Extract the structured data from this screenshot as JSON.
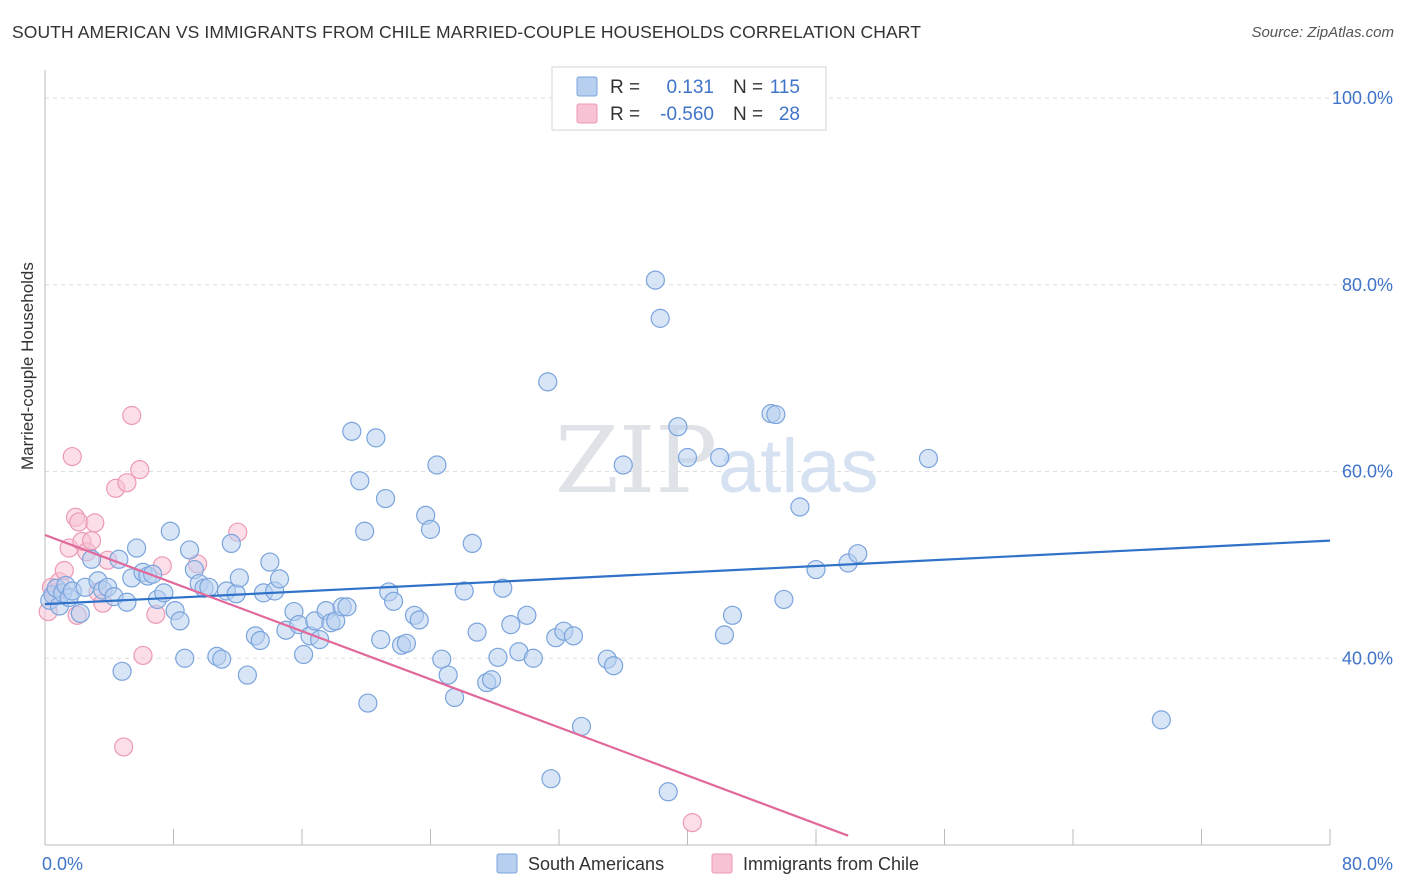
{
  "title": "SOUTH AMERICAN VS IMMIGRANTS FROM CHILE MARRIED-COUPLE HOUSEHOLDS CORRELATION CHART",
  "source": "Source: ZipAtlas.com",
  "watermark": {
    "zip": "ZIP",
    "atlas": "atlas"
  },
  "colors": {
    "blue_fill": "#b8d0f0",
    "blue_stroke": "#7aa4dc",
    "blue_line": "#2f72c8",
    "pink_fill": "#f7c3d4",
    "pink_stroke": "#ec9ab6",
    "pink_line": "#e0689a",
    "axis_text": "#3f74c8",
    "grid": "#dddddd"
  },
  "legend": {
    "rows": [
      {
        "r_label": "R =",
        "r_value": "0.131",
        "n_label": "N =",
        "n_value": "115",
        "color": "blue"
      },
      {
        "r_label": "R =",
        "r_value": "-0.560",
        "n_label": "N =",
        "n_value": "28",
        "color": "pink"
      }
    ]
  },
  "bottom_legend": [
    {
      "label": "South Americans",
      "color": "blue"
    },
    {
      "label": "Immigrants from Chile",
      "color": "pink"
    }
  ],
  "chart_data": {
    "type": "scatter",
    "xlabel": "",
    "ylabel": "Married-couple Households",
    "xlim": [
      0,
      80
    ],
    "ylim": [
      20,
      103
    ],
    "x_tick_labels": [
      {
        "value": 0,
        "label": "0.0%"
      },
      {
        "value": 80,
        "label": "80.0%"
      }
    ],
    "y_tick_labels": [
      {
        "value": 100,
        "label": "100.0%"
      },
      {
        "value": 80,
        "label": "80.0%"
      },
      {
        "value": 60,
        "label": "60.0%"
      },
      {
        "value": 40,
        "label": "40.0%"
      }
    ],
    "grid": true,
    "legend_position": "top-center",
    "series": [
      {
        "name": "South Americans",
        "color": "blue",
        "trend": {
          "x": [
            0,
            80
          ],
          "y": [
            45.8,
            52.6
          ]
        },
        "points": [
          [
            0.3,
            46.2
          ],
          [
            0.5,
            46.8
          ],
          [
            0.7,
            47.5
          ],
          [
            0.9,
            45.6
          ],
          [
            1.1,
            47.0
          ],
          [
            1.3,
            47.8
          ],
          [
            1.5,
            46.5
          ],
          [
            1.7,
            47.2
          ],
          [
            2.2,
            44.8
          ],
          [
            2.5,
            47.6
          ],
          [
            2.9,
            50.6
          ],
          [
            3.3,
            48.3
          ],
          [
            3.6,
            47.3
          ],
          [
            3.9,
            47.6
          ],
          [
            4.3,
            46.6
          ],
          [
            4.6,
            50.6
          ],
          [
            4.8,
            38.6
          ],
          [
            5.1,
            46.0
          ],
          [
            5.4,
            48.6
          ],
          [
            5.7,
            51.8
          ],
          [
            6.1,
            49.2
          ],
          [
            6.4,
            48.8
          ],
          [
            6.7,
            49.0
          ],
          [
            7.0,
            46.3
          ],
          [
            7.4,
            47.0
          ],
          [
            7.8,
            53.6
          ],
          [
            8.1,
            45.1
          ],
          [
            8.4,
            44.0
          ],
          [
            8.7,
            40.0
          ],
          [
            9.0,
            51.6
          ],
          [
            9.3,
            49.5
          ],
          [
            9.6,
            48.0
          ],
          [
            9.9,
            47.5
          ],
          [
            10.2,
            47.6
          ],
          [
            10.7,
            40.2
          ],
          [
            11.0,
            39.9
          ],
          [
            11.3,
            47.2
          ],
          [
            11.6,
            52.3
          ],
          [
            11.9,
            46.9
          ],
          [
            12.1,
            48.6
          ],
          [
            12.6,
            38.2
          ],
          [
            13.1,
            42.4
          ],
          [
            13.4,
            41.9
          ],
          [
            13.6,
            47.0
          ],
          [
            14.0,
            50.3
          ],
          [
            14.3,
            47.2
          ],
          [
            14.6,
            48.5
          ],
          [
            15.0,
            43.0
          ],
          [
            15.5,
            45.0
          ],
          [
            15.8,
            43.6
          ],
          [
            16.1,
            40.4
          ],
          [
            16.5,
            42.4
          ],
          [
            16.8,
            44.0
          ],
          [
            17.1,
            42.0
          ],
          [
            17.5,
            45.1
          ],
          [
            17.8,
            43.8
          ],
          [
            18.1,
            44.0
          ],
          [
            18.5,
            45.5
          ],
          [
            18.8,
            45.5
          ],
          [
            19.1,
            64.3
          ],
          [
            19.6,
            59.0
          ],
          [
            19.9,
            53.6
          ],
          [
            20.1,
            35.2
          ],
          [
            20.6,
            63.6
          ],
          [
            20.9,
            42.0
          ],
          [
            21.2,
            57.1
          ],
          [
            21.4,
            47.1
          ],
          [
            21.7,
            46.1
          ],
          [
            22.2,
            41.4
          ],
          [
            22.5,
            41.6
          ],
          [
            23.0,
            44.6
          ],
          [
            23.3,
            44.1
          ],
          [
            23.7,
            55.3
          ],
          [
            24.0,
            53.8
          ],
          [
            24.4,
            60.7
          ],
          [
            24.7,
            39.9
          ],
          [
            25.1,
            38.2
          ],
          [
            25.5,
            35.8
          ],
          [
            26.1,
            47.2
          ],
          [
            26.6,
            52.3
          ],
          [
            26.9,
            42.8
          ],
          [
            27.5,
            37.4
          ],
          [
            27.8,
            37.7
          ],
          [
            28.2,
            40.1
          ],
          [
            28.5,
            47.5
          ],
          [
            29.0,
            43.6
          ],
          [
            29.5,
            40.7
          ],
          [
            30.0,
            44.6
          ],
          [
            30.4,
            40.0
          ],
          [
            31.3,
            69.6
          ],
          [
            31.5,
            27.1
          ],
          [
            31.8,
            42.2
          ],
          [
            32.3,
            42.9
          ],
          [
            32.9,
            42.4
          ],
          [
            33.4,
            32.7
          ],
          [
            35.0,
            39.9
          ],
          [
            35.4,
            39.2
          ],
          [
            36.0,
            60.7
          ],
          [
            38.0,
            80.5
          ],
          [
            38.3,
            76.4
          ],
          [
            38.8,
            25.7
          ],
          [
            39.4,
            64.8
          ],
          [
            40.0,
            61.5
          ],
          [
            42.0,
            61.5
          ],
          [
            42.3,
            42.5
          ],
          [
            42.8,
            44.6
          ],
          [
            45.2,
            66.2
          ],
          [
            45.5,
            66.1
          ],
          [
            46.0,
            46.3
          ],
          [
            47.0,
            56.2
          ],
          [
            48.0,
            49.5
          ],
          [
            50.0,
            50.2
          ],
          [
            50.6,
            51.2
          ],
          [
            55.0,
            61.4
          ],
          [
            69.5,
            33.4
          ]
        ]
      },
      {
        "name": "Immigrants from Chile",
        "color": "pink",
        "trend": {
          "x": [
            0,
            50
          ],
          "y": [
            53.2,
            21.0
          ]
        },
        "points": [
          [
            0.2,
            45.0
          ],
          [
            0.4,
            47.6
          ],
          [
            0.6,
            47.0
          ],
          [
            0.9,
            48.2
          ],
          [
            1.2,
            49.4
          ],
          [
            1.5,
            51.8
          ],
          [
            1.7,
            61.6
          ],
          [
            1.9,
            55.1
          ],
          [
            2.1,
            54.6
          ],
          [
            2.3,
            52.5
          ],
          [
            2.6,
            51.4
          ],
          [
            2.9,
            52.6
          ],
          [
            3.1,
            54.5
          ],
          [
            3.3,
            47.1
          ],
          [
            3.6,
            45.9
          ],
          [
            3.9,
            50.5
          ],
          [
            4.4,
            58.2
          ],
          [
            4.9,
            30.5
          ],
          [
            5.1,
            58.8
          ],
          [
            5.4,
            66.0
          ],
          [
            5.9,
            60.2
          ],
          [
            6.1,
            40.3
          ],
          [
            6.9,
            44.7
          ],
          [
            7.3,
            49.9
          ],
          [
            9.5,
            50.1
          ],
          [
            12.0,
            53.5
          ],
          [
            2.0,
            44.6
          ],
          [
            40.3,
            22.4
          ]
        ]
      }
    ]
  }
}
